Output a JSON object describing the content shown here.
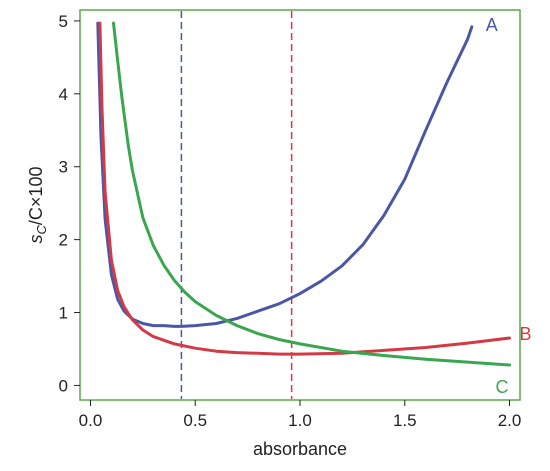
{
  "chart_data": {
    "type": "line",
    "xlabel": "absorbance",
    "ylabel": {
      "s": "s",
      "sub": "C",
      "rest": "/C×100"
    },
    "xlim": [
      -0.05,
      2.05
    ],
    "ylim": [
      -0.2,
      5.15
    ],
    "xticks": [
      "0.0",
      "0.5",
      "1.0",
      "1.5",
      "2.0"
    ],
    "yticks": [
      "0",
      "1",
      "2",
      "3",
      "4",
      "5"
    ],
    "frame_color": "#5aa84a",
    "series": [
      {
        "name": "A",
        "color": "#4b57a5",
        "x": [
          0.035,
          0.05,
          0.07,
          0.1,
          0.13,
          0.16,
          0.2,
          0.25,
          0.3,
          0.35,
          0.4,
          0.434,
          0.5,
          0.6,
          0.7,
          0.8,
          0.9,
          1.0,
          1.1,
          1.2,
          1.3,
          1.4,
          1.5,
          1.6,
          1.7,
          1.8,
          1.82
        ],
        "y": [
          4.97,
          3.4,
          2.28,
          1.52,
          1.18,
          1.02,
          0.91,
          0.85,
          0.82,
          0.82,
          0.81,
          0.81,
          0.82,
          0.85,
          0.92,
          1.02,
          1.12,
          1.26,
          1.43,
          1.64,
          1.93,
          2.33,
          2.83,
          3.5,
          4.15,
          4.75,
          4.92
        ]
      },
      {
        "name": "B",
        "color": "#d43a45",
        "x": [
          0.045,
          0.055,
          0.07,
          0.1,
          0.13,
          0.16,
          0.2,
          0.25,
          0.3,
          0.4,
          0.5,
          0.6,
          0.7,
          0.8,
          0.9,
          0.96,
          1.0,
          1.2,
          1.4,
          1.6,
          1.8,
          2.0
        ],
        "y": [
          4.97,
          3.8,
          2.65,
          1.72,
          1.3,
          1.08,
          0.9,
          0.76,
          0.67,
          0.57,
          0.51,
          0.47,
          0.45,
          0.44,
          0.43,
          0.43,
          0.43,
          0.44,
          0.48,
          0.52,
          0.58,
          0.65
        ]
      },
      {
        "name": "C",
        "color": "#3aa650",
        "x": [
          0.11,
          0.13,
          0.15,
          0.18,
          0.2,
          0.25,
          0.3,
          0.35,
          0.4,
          0.45,
          0.5,
          0.6,
          0.7,
          0.8,
          0.9,
          1.0,
          1.2,
          1.4,
          1.6,
          1.8,
          2.0
        ],
        "y": [
          4.97,
          4.45,
          3.95,
          3.3,
          2.95,
          2.3,
          1.92,
          1.65,
          1.44,
          1.28,
          1.15,
          0.96,
          0.82,
          0.71,
          0.63,
          0.57,
          0.47,
          0.41,
          0.36,
          0.32,
          0.28
        ]
      }
    ],
    "reference_lines": [
      {
        "x": 0.434,
        "color": "#4b57a5"
      },
      {
        "x": 0.96,
        "color": "#d43a45"
      }
    ]
  }
}
